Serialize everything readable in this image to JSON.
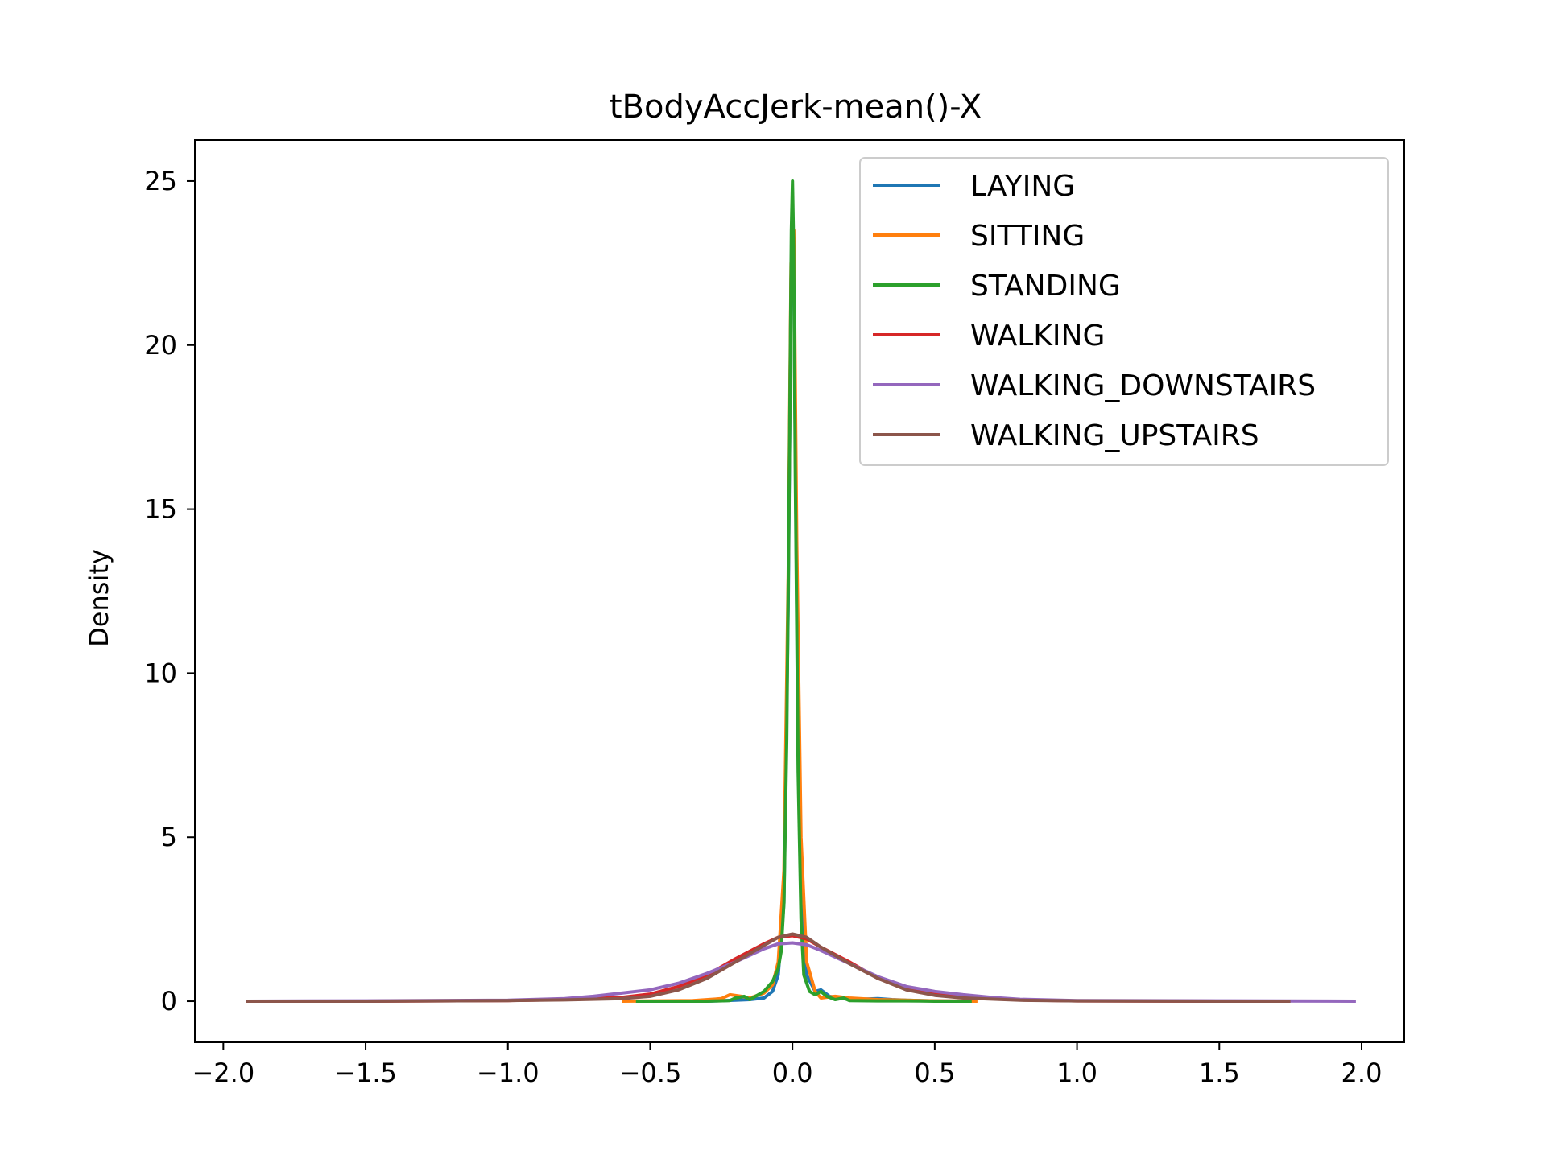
{
  "chart_data": {
    "type": "line",
    "title": "tBodyAccJerk-mean()-X",
    "xlabel": "",
    "ylabel": "Density",
    "xlim": [
      -2.1,
      2.15
    ],
    "ylim": [
      -1.25,
      26.25
    ],
    "xticks": [
      -2.0,
      -1.5,
      -1.0,
      -0.5,
      0.0,
      0.5,
      1.0,
      1.5,
      2.0
    ],
    "xtick_labels": [
      "−2.0",
      "−1.5",
      "−1.0",
      "−0.5",
      "0.0",
      "0.5",
      "1.0",
      "1.5",
      "2.0"
    ],
    "yticks": [
      0,
      5,
      10,
      15,
      20,
      25
    ],
    "ytick_labels": [
      "0",
      "5",
      "10",
      "15",
      "20",
      "25"
    ],
    "grid": false,
    "legend_position": "top-right",
    "series": [
      {
        "name": "LAYING",
        "color": "#1f77b4",
        "x": [
          -0.55,
          -0.3,
          -0.2,
          -0.15,
          -0.1,
          -0.07,
          -0.05,
          -0.03,
          -0.015,
          -0.005,
          0.0,
          0.005,
          0.015,
          0.03,
          0.05,
          0.08,
          0.1,
          0.13,
          0.2,
          0.3,
          0.35,
          0.4,
          0.5,
          0.63
        ],
        "y": [
          0,
          0,
          0.03,
          0.05,
          0.1,
          0.3,
          0.8,
          3,
          12,
          22,
          24.3,
          22,
          12,
          3,
          0.8,
          0.3,
          0.35,
          0.15,
          0.05,
          0.08,
          0.05,
          0.03,
          0.01,
          0
        ]
      },
      {
        "name": "SITTING",
        "color": "#ff7f0e",
        "x": [
          -0.6,
          -0.35,
          -0.25,
          -0.22,
          -0.18,
          -0.15,
          -0.1,
          -0.07,
          -0.05,
          -0.03,
          -0.015,
          -0.005,
          0.005,
          0.015,
          0.03,
          0.05,
          0.08,
          0.1,
          0.15,
          0.2,
          0.3,
          0.4,
          0.5,
          0.65
        ],
        "y": [
          0,
          0.02,
          0.08,
          0.2,
          0.15,
          0.1,
          0.25,
          0.5,
          1.2,
          4,
          13,
          22.5,
          23.5,
          14,
          5,
          1.2,
          0.3,
          0.1,
          0.15,
          0.1,
          0.05,
          0.03,
          0.01,
          0
        ]
      },
      {
        "name": "STANDING",
        "color": "#2ca02c",
        "x": [
          -0.55,
          -0.3,
          -0.22,
          -0.2,
          -0.17,
          -0.15,
          -0.12,
          -0.1,
          -0.07,
          -0.05,
          -0.04,
          -0.03,
          -0.02,
          -0.01,
          -0.004,
          0.0,
          0.004,
          0.01,
          0.02,
          0.03,
          0.04,
          0.06,
          0.08,
          0.1,
          0.12,
          0.15,
          0.18,
          0.2,
          0.3,
          0.4,
          0.5,
          0.63
        ],
        "y": [
          0,
          0,
          0.02,
          0.1,
          0.15,
          0.05,
          0.2,
          0.3,
          0.6,
          1.0,
          1.5,
          3,
          8,
          17,
          23.5,
          25.0,
          23,
          16,
          7,
          2.5,
          0.8,
          0.3,
          0.2,
          0.3,
          0.15,
          0.05,
          0.1,
          0.02,
          0.01,
          0.01,
          0,
          0
        ]
      },
      {
        "name": "WALKING",
        "color": "#d62728",
        "x": [
          -1.92,
          -1.5,
          -1.0,
          -0.8,
          -0.6,
          -0.5,
          -0.4,
          -0.3,
          -0.2,
          -0.1,
          -0.05,
          0.0,
          0.05,
          0.1,
          0.2,
          0.3,
          0.4,
          0.5,
          0.6,
          0.8,
          1.0,
          1.5,
          1.75
        ],
        "y": [
          0,
          0,
          0.02,
          0.05,
          0.12,
          0.22,
          0.45,
          0.8,
          1.3,
          1.75,
          1.95,
          2.0,
          1.9,
          1.65,
          1.2,
          0.7,
          0.4,
          0.22,
          0.12,
          0.04,
          0.01,
          0,
          0
        ]
      },
      {
        "name": "WALKING_DOWNSTAIRS",
        "color": "#9467bd",
        "x": [
          -1.92,
          -1.5,
          -1.0,
          -0.8,
          -0.7,
          -0.6,
          -0.5,
          -0.4,
          -0.3,
          -0.2,
          -0.1,
          -0.05,
          0.0,
          0.05,
          0.1,
          0.2,
          0.3,
          0.4,
          0.5,
          0.6,
          0.7,
          0.8,
          1.0,
          1.5,
          1.98
        ],
        "y": [
          0,
          0.01,
          0.03,
          0.08,
          0.15,
          0.25,
          0.35,
          0.55,
          0.85,
          1.2,
          1.6,
          1.75,
          1.78,
          1.72,
          1.55,
          1.15,
          0.75,
          0.45,
          0.3,
          0.2,
          0.12,
          0.06,
          0.02,
          0.01,
          0
        ]
      },
      {
        "name": "WALKING_UPSTAIRS",
        "color": "#8c564b",
        "x": [
          -1.92,
          -1.5,
          -1.0,
          -0.8,
          -0.6,
          -0.5,
          -0.4,
          -0.3,
          -0.2,
          -0.1,
          -0.05,
          0.0,
          0.05,
          0.1,
          0.15,
          0.2,
          0.3,
          0.4,
          0.5,
          0.6,
          0.8,
          1.0,
          1.5,
          1.75
        ],
        "y": [
          0,
          0,
          0.02,
          0.04,
          0.08,
          0.15,
          0.35,
          0.7,
          1.2,
          1.7,
          1.95,
          2.05,
          1.95,
          1.65,
          1.4,
          1.15,
          0.7,
          0.35,
          0.18,
          0.1,
          0.03,
          0.01,
          0,
          0
        ]
      }
    ]
  }
}
